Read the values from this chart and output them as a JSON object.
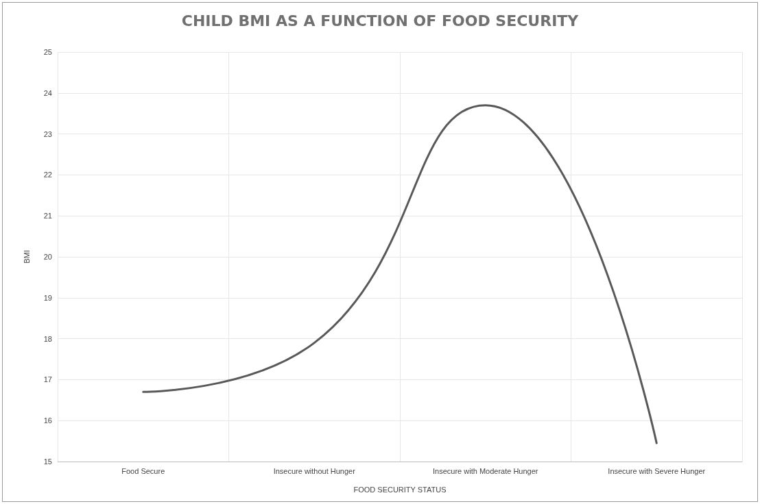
{
  "chart_data": {
    "type": "line",
    "title": "CHILD BMI AS A FUNCTION OF FOOD SECURITY",
    "xlabel": "FOOD SECURITY STATUS",
    "ylabel": "BMI",
    "categories": [
      "Food Secure",
      "Insecure without Hunger",
      "Insecure with Moderate Hunger",
      "Insecure with Severe Hunger"
    ],
    "series": [
      {
        "color": "#595959",
        "values": [
          16.7,
          17.9,
          23.7,
          15.45
        ]
      }
    ],
    "ylim": [
      15,
      25
    ],
    "yticks": [
      15,
      16,
      17,
      18,
      19,
      20,
      21,
      22,
      23,
      24,
      25
    ],
    "grid": true,
    "marker": "none",
    "line_style": "solid"
  }
}
